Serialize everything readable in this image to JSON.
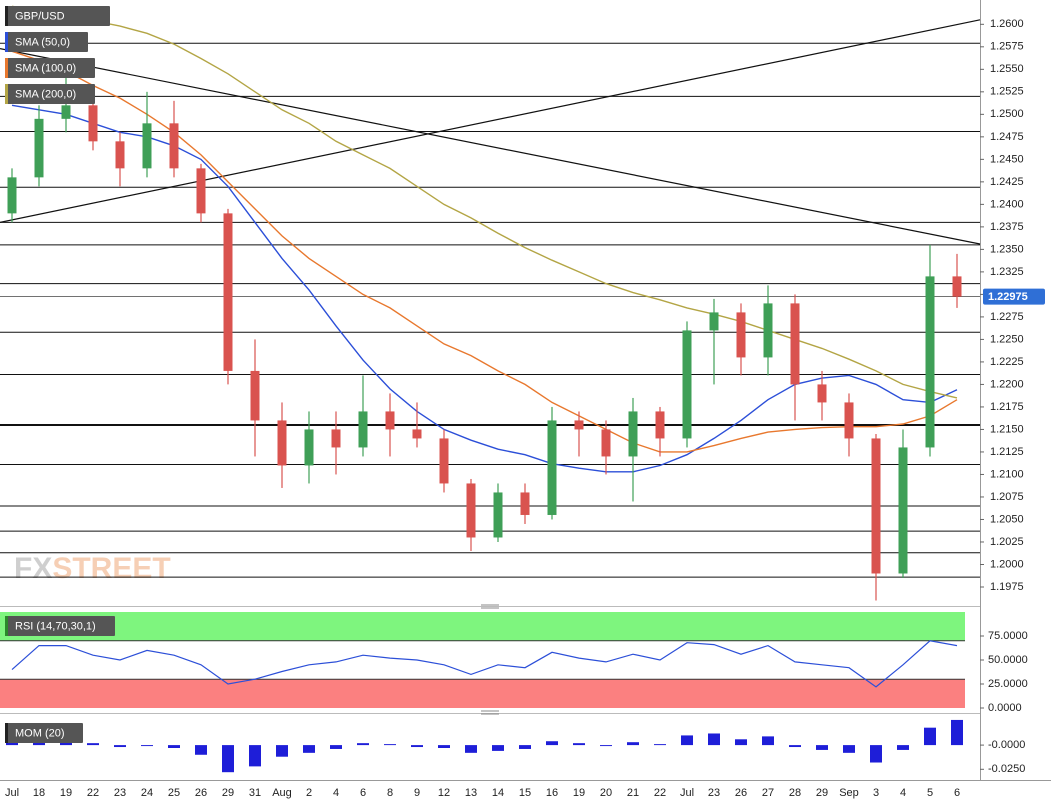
{
  "chart_data": [
    {
      "type": "candlestick",
      "title": "GBP/USD",
      "watermark": [
        "FX",
        "STREET"
      ],
      "categories": [
        "Jul",
        "18",
        "19",
        "22",
        "23",
        "24",
        "25",
        "26",
        "29",
        "31",
        "Aug",
        "2",
        "4",
        "6",
        "8",
        "9",
        "12",
        "13",
        "14",
        "15",
        "16",
        "19",
        "20",
        "21",
        "22",
        "Jul",
        "23",
        "26",
        "27",
        "28",
        "29",
        "Sep",
        "3",
        "4",
        "5",
        "6"
      ],
      "open": [
        1.239,
        1.243,
        1.2495,
        1.251,
        1.247,
        1.244,
        1.249,
        1.244,
        1.239,
        1.2215,
        1.216,
        1.211,
        1.215,
        1.213,
        1.217,
        1.215,
        1.214,
        1.209,
        1.203,
        1.208,
        1.2055,
        1.216,
        1.215,
        1.212,
        1.217,
        1.214,
        1.226,
        1.228,
        1.223,
        1.229,
        1.22,
        1.218,
        1.214,
        1.199,
        1.213,
        1.232
      ],
      "high": [
        1.244,
        1.251,
        1.256,
        1.252,
        1.248,
        1.2525,
        1.2515,
        1.2445,
        1.2395,
        1.225,
        1.218,
        1.217,
        1.217,
        1.221,
        1.219,
        1.218,
        1.215,
        1.2095,
        1.209,
        1.209,
        1.2175,
        1.217,
        1.216,
        1.2185,
        1.2175,
        1.227,
        1.2295,
        1.229,
        1.231,
        1.23,
        1.2215,
        1.219,
        1.2145,
        1.215,
        1.2355,
        1.2345
      ],
      "low": [
        1.238,
        1.242,
        1.248,
        1.246,
        1.242,
        1.243,
        1.243,
        1.238,
        1.22,
        1.212,
        1.2085,
        1.209,
        1.21,
        1.212,
        1.212,
        1.213,
        1.208,
        1.2015,
        1.2025,
        1.2045,
        1.205,
        1.212,
        1.21,
        1.207,
        1.212,
        1.213,
        1.22,
        1.221,
        1.221,
        1.216,
        1.216,
        1.212,
        1.196,
        1.1985,
        1.212,
        1.2285
      ],
      "close": [
        1.243,
        1.2495,
        1.251,
        1.247,
        1.244,
        1.249,
        1.244,
        1.239,
        1.2215,
        1.216,
        1.211,
        1.215,
        1.213,
        1.217,
        1.215,
        1.214,
        1.209,
        1.203,
        1.208,
        1.2055,
        1.216,
        1.215,
        1.212,
        1.217,
        1.214,
        1.226,
        1.228,
        1.223,
        1.229,
        1.22,
        1.218,
        1.214,
        1.199,
        1.213,
        1.232,
        1.22975
      ],
      "up_color": "#3f9f57",
      "down_color": "#d9534f",
      "price_color": "#2f6fd6",
      "series": [
        {
          "name": "SMA (50,0)",
          "color": "#2c4fd8",
          "values": [
            1.251,
            1.2505,
            1.25,
            1.249,
            1.248,
            1.2475,
            1.2465,
            1.245,
            1.242,
            1.238,
            1.234,
            1.2305,
            1.2265,
            1.2227,
            1.2195,
            1.217,
            1.215,
            1.2138,
            1.2128,
            1.2122,
            1.2112,
            1.2107,
            1.2103,
            1.2103,
            1.211,
            1.2122,
            1.214,
            1.216,
            1.2183,
            1.22,
            1.2207,
            1.221,
            1.22,
            1.2183,
            1.218,
            1.2194
          ]
        },
        {
          "name": "SMA (100,0)",
          "color": "#e8782e",
          "values": [
            1.257,
            1.256,
            1.2548,
            1.2532,
            1.2518,
            1.25,
            1.248,
            1.2455,
            1.2425,
            1.2395,
            1.2365,
            1.234,
            1.232,
            1.23,
            1.2285,
            1.2265,
            1.2245,
            1.2232,
            1.2215,
            1.22,
            1.218,
            1.2165,
            1.215,
            1.2135,
            1.2125,
            1.2125,
            1.2132,
            1.214,
            1.2147,
            1.215,
            1.2152,
            1.2153,
            1.2153,
            1.2156,
            1.2165,
            1.2183
          ]
        },
        {
          "name": "SMA (200,0)",
          "color": "#b3a545",
          "values": [
            1.262,
            1.2615,
            1.261,
            1.2604,
            1.2598,
            1.259,
            1.2578,
            1.2562,
            1.2545,
            1.2525,
            1.2505,
            1.249,
            1.247,
            1.2455,
            1.244,
            1.242,
            1.24,
            1.2385,
            1.2368,
            1.2352,
            1.2338,
            1.2325,
            1.2312,
            1.2302,
            1.2294,
            1.2285,
            1.2278,
            1.227,
            1.226,
            1.225,
            1.224,
            1.2228,
            1.2215,
            1.22,
            1.2192,
            1.2185
          ]
        }
      ],
      "levels": [
        {
          "value": 1.2579
        },
        {
          "value": 1.252
        },
        {
          "value": 1.2481
        },
        {
          "value": 1.2419
        },
        {
          "value": 1.238
        },
        {
          "value": 1.2355
        },
        {
          "value": 1.2312
        },
        {
          "value": 1.2258
        },
        {
          "value": 1.2211
        },
        {
          "value": 1.2155,
          "bold": true
        },
        {
          "value": 1.2111
        },
        {
          "value": 1.2065
        },
        {
          "value": 1.2037
        },
        {
          "value": 1.2013
        },
        {
          "value": 1.1986
        }
      ],
      "trendlines": [
        {
          "start": 1.238,
          "end": 1.2605
        },
        {
          "start": 1.2573,
          "end": 1.2356
        }
      ],
      "ylim": [
        1.1955,
        1.2627
      ],
      "yticks": [
        1.1975,
        {
          "value": 1.2,
          "label": "1.2000"
        },
        1.2025,
        {
          "value": 1.205,
          "label": "1.2050"
        },
        1.2075,
        {
          "value": 1.21,
          "label": "1.2100"
        },
        1.2125,
        {
          "value": 1.215,
          "label": "1.2150"
        },
        1.2175,
        {
          "value": 1.22,
          "label": "1.2200"
        },
        1.2225,
        {
          "value": 1.225,
          "label": "1.2250"
        },
        1.2275,
        {
          "value": 1.23,
          "label": "1.2300"
        },
        1.2325,
        {
          "value": 1.235,
          "label": "1.2350"
        },
        1.2375,
        {
          "value": 1.24,
          "label": "1.2400"
        },
        1.2425,
        {
          "value": 1.245,
          "label": "1.2450"
        },
        1.2475,
        {
          "value": 1.25,
          "label": "1.2500"
        },
        1.2525,
        {
          "value": 1.255,
          "label": "1.2550"
        },
        1.2575,
        {
          "value": 1.26,
          "label": "1.2600"
        }
      ]
    },
    {
      "type": "line",
      "title": "RSI (14,70,30,1)",
      "color": "#2c4fd8",
      "values": [
        40,
        65,
        65,
        55,
        50,
        60,
        55,
        45,
        25,
        30,
        38,
        45,
        48,
        55,
        52,
        50,
        45,
        35,
        45,
        42,
        58,
        52,
        48,
        56,
        50,
        68,
        66,
        56,
        65,
        48,
        45,
        42,
        22,
        45,
        70,
        65
      ],
      "overbought": 70,
      "oversold": 30,
      "overbought_color": "#7ef57e",
      "oversold_color": "#fb8080",
      "ylim": [
        0,
        100
      ],
      "yticks": [
        {
          "value": 0,
          "label": "0.0000"
        },
        {
          "value": 25,
          "label": "25.0000"
        },
        {
          "value": 50,
          "label": "50.0000"
        },
        {
          "value": 75,
          "label": "75.0000"
        }
      ]
    },
    {
      "type": "bar",
      "title": "MOM (20)",
      "color": "#1e1ed8",
      "values": [
        0.005,
        0.008,
        0.004,
        0.002,
        -0.002,
        -0.001,
        -0.003,
        -0.01,
        -0.028,
        -0.022,
        -0.012,
        -0.008,
        -0.004,
        0.002,
        0.001,
        -0.002,
        -0.003,
        -0.008,
        -0.006,
        -0.004,
        0.004,
        0.002,
        -0.001,
        0.003,
        0.001,
        0.01,
        0.012,
        0.006,
        0.009,
        -0.002,
        -0.005,
        -0.008,
        -0.018,
        -0.005,
        0.018,
        0.026
      ],
      "ylim": [
        -0.034,
        0.028
      ],
      "yticks": [
        {
          "value": -0.025,
          "label": "-0.0250"
        },
        {
          "value": 0,
          "label": "-0.0000"
        }
      ]
    }
  ]
}
